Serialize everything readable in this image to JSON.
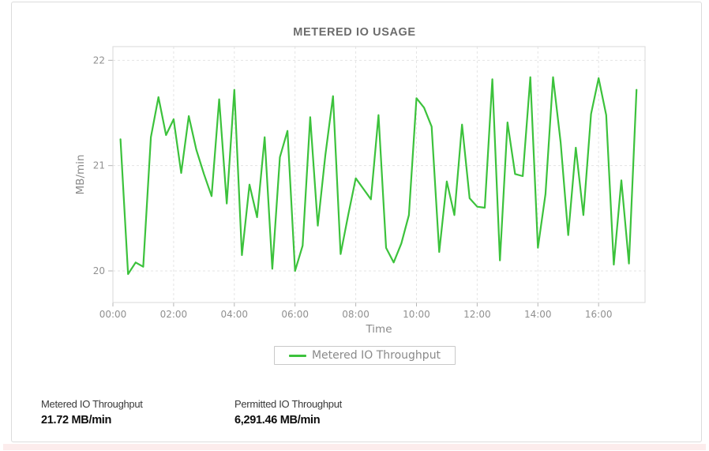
{
  "card": {
    "title": "METERED IO USAGE"
  },
  "legend": {
    "label": "Metered IO Throughput"
  },
  "stats": [
    {
      "label": "Metered IO Throughput",
      "value": "21.72 MB/min"
    },
    {
      "label": "Permitted IO Throughput",
      "value": "6,291.46 MB/min"
    }
  ],
  "colors": {
    "line_green": "#3cc23c",
    "grid": "#e4e4e4",
    "plot_border": "#d8d8d8",
    "tick": "#b5b5b5",
    "title_gray": "#6c6c6c"
  },
  "chart_data": {
    "type": "line",
    "title": "METERED IO USAGE",
    "xlabel": "Time",
    "ylabel": "MB/min",
    "legend_entries": [
      "Metered IO Throughput"
    ],
    "legend_position": "bottom",
    "grid": true,
    "line_color": "#3cc23c",
    "xticks": [
      "00:00",
      "02:00",
      "04:00",
      "06:00",
      "08:00",
      "10:00",
      "12:00",
      "14:00",
      "16:00"
    ],
    "xtick_hours": [
      0,
      2,
      4,
      6,
      8,
      10,
      12,
      14,
      16
    ],
    "yticks": [
      20,
      21,
      22
    ],
    "ylim": [
      19.7,
      22.13
    ],
    "xlim_hours": [
      0,
      17.53
    ],
    "series": [
      {
        "name": "Metered IO Throughput",
        "unit": "MB/min",
        "times": [
          "00:15",
          "00:30",
          "00:45",
          "01:00",
          "01:15",
          "01:30",
          "01:45",
          "02:00",
          "02:15",
          "02:30",
          "02:45",
          "03:00",
          "03:15",
          "03:30",
          "03:45",
          "04:00",
          "04:15",
          "04:30",
          "04:45",
          "05:00",
          "05:15",
          "05:30",
          "05:45",
          "06:00",
          "06:15",
          "06:30",
          "06:45",
          "07:00",
          "07:15",
          "07:30",
          "07:45",
          "08:00",
          "08:15",
          "08:30",
          "08:45",
          "09:00",
          "09:15",
          "09:30",
          "09:45",
          "10:00",
          "10:15",
          "10:30",
          "10:45",
          "11:00",
          "11:15",
          "11:30",
          "11:45",
          "12:00",
          "12:15",
          "12:30",
          "12:45",
          "13:00",
          "13:15",
          "13:30",
          "13:45",
          "14:00",
          "14:15",
          "14:30",
          "14:45",
          "15:00",
          "15:15",
          "15:30",
          "15:45",
          "16:00",
          "16:15",
          "16:30",
          "16:45",
          "17:00",
          "17:15"
        ],
        "values": [
          21.25,
          19.97,
          20.08,
          20.04,
          21.27,
          21.65,
          21.29,
          21.44,
          20.93,
          21.47,
          21.15,
          20.92,
          20.71,
          21.63,
          20.64,
          21.72,
          20.15,
          20.82,
          20.51,
          21.27,
          20.02,
          21.08,
          21.33,
          20.0,
          20.24,
          21.46,
          20.43,
          21.1,
          21.66,
          20.16,
          20.53,
          20.88,
          20.78,
          20.68,
          21.48,
          20.22,
          20.08,
          20.26,
          20.53,
          21.64,
          21.55,
          21.37,
          20.18,
          20.85,
          20.53,
          21.39,
          20.69,
          20.61,
          20.6,
          21.82,
          20.1,
          21.41,
          20.92,
          20.9,
          21.84,
          20.22,
          20.73,
          21.84,
          21.22,
          20.34,
          21.17,
          20.53,
          21.49,
          21.83,
          21.48,
          20.06,
          20.86,
          20.07,
          21.72
        ]
      }
    ]
  }
}
